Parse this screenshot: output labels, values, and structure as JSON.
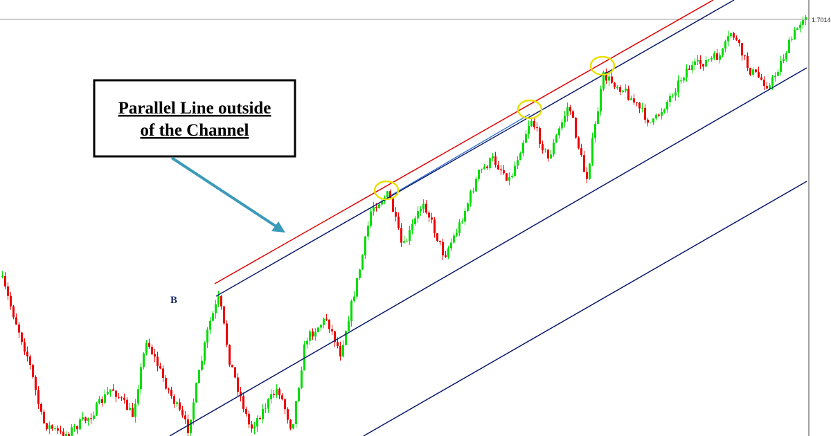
{
  "annotation": {
    "line1": "Parallel Line outside",
    "line2": "of the Channel"
  },
  "point_label": "B",
  "price_label": "1.70141"
}
